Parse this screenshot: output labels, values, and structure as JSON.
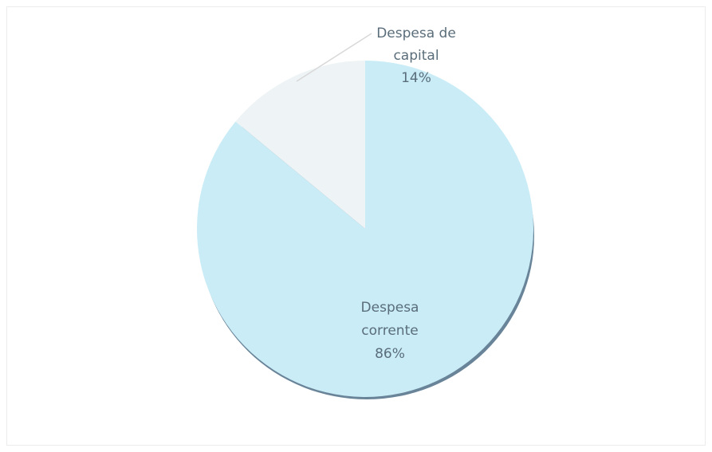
{
  "chart_data": {
    "type": "pie",
    "title": "",
    "slices": [
      {
        "label_lines": [
          "Despesa",
          "corrente"
        ],
        "percent_label": "86%",
        "value": 86,
        "color": "#c9ecf7"
      },
      {
        "label_lines": [
          "Despesa de",
          "capital"
        ],
        "percent_label": "14%",
        "value": 14,
        "color": "#eef3f5"
      }
    ],
    "legend": "none"
  }
}
